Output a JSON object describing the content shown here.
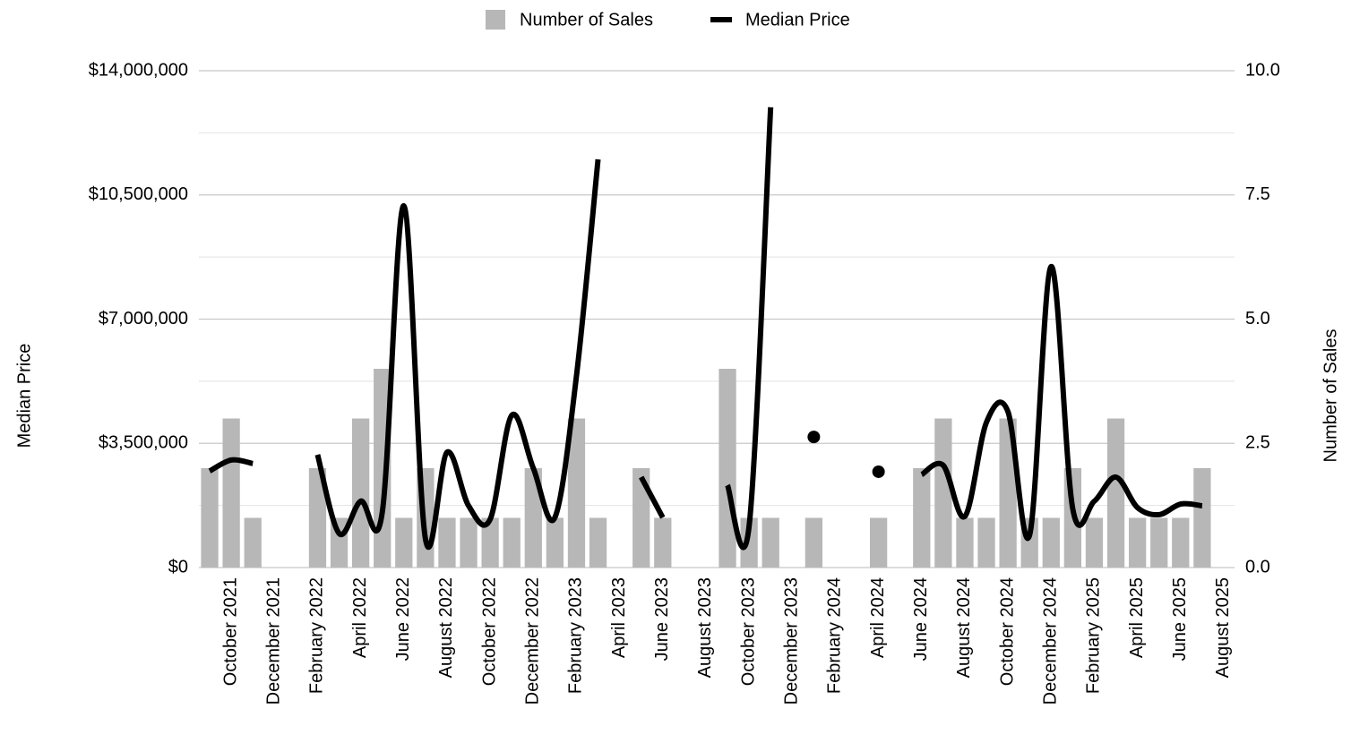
{
  "chart_data": {
    "type": "combo",
    "categories": [
      null,
      "October 2021",
      null,
      "December 2021",
      null,
      "February 2022",
      null,
      "April 2022",
      null,
      "June 2022",
      null,
      "August 2022",
      null,
      "October 2022",
      null,
      "December 2022",
      null,
      "February 2023",
      null,
      "April 2023",
      null,
      "June 2023",
      null,
      "August 2023",
      null,
      "October 2023",
      null,
      "December 2023",
      null,
      "February 2024",
      null,
      "April 2024",
      null,
      "June 2024",
      null,
      "August 2024",
      null,
      "October 2024",
      null,
      "December 2024",
      null,
      "February 2025",
      null,
      "April 2025",
      null,
      "June 2025",
      null,
      "August 2025"
    ],
    "series": [
      {
        "name": "Number of Sales",
        "type": "bar",
        "axis": "y2",
        "color": "#b7b7b7",
        "values": [
          2,
          3,
          1,
          0,
          0,
          2,
          1,
          3,
          4,
          1,
          2,
          1,
          1,
          1,
          1,
          2,
          1,
          3,
          1,
          0,
          2,
          1,
          0,
          0,
          4,
          1,
          1,
          0,
          1,
          0,
          0,
          1,
          0,
          2,
          3,
          1,
          1,
          3,
          1,
          1,
          2,
          1,
          3,
          1,
          1,
          1,
          2,
          0
        ]
      },
      {
        "name": "Median Price",
        "type": "line",
        "axis": "y",
        "color": "#000000",
        "values": [
          2720000,
          3030000,
          2930000,
          null,
          null,
          3180000,
          960000,
          1870000,
          1560000,
          10190000,
          810000,
          3250000,
          1740000,
          1360000,
          4290000,
          2800000,
          1410000,
          5400000,
          11500000,
          null,
          2550000,
          1410000,
          null,
          null,
          2320000,
          1160000,
          12970000,
          null,
          3680000,
          null,
          null,
          2700000,
          null,
          2620000,
          2880000,
          1440000,
          4090000,
          4390000,
          910000,
          8480000,
          1660000,
          1870000,
          2550000,
          1690000,
          1490000,
          1790000,
          1740000,
          null
        ]
      }
    ],
    "y_label": "Median Price",
    "y2_label": "Number of Sales",
    "ylim": [
      0,
      14000000
    ],
    "yticks": [
      {
        "value": 0,
        "label": "$0"
      },
      {
        "value": 3500000,
        "label": "$3,500,000"
      },
      {
        "value": 7000000,
        "label": "$7,000,000"
      },
      {
        "value": 10500000,
        "label": "$10,500,000"
      },
      {
        "value": 14000000,
        "label": "$14,000,000"
      }
    ],
    "y2lim": [
      0,
      10
    ],
    "y2ticks": [
      {
        "value": 0,
        "label": "0.0"
      },
      2.5,
      {
        "value": 5,
        "label": "5.0"
      },
      7.5,
      {
        "value": 10,
        "label": "10.0"
      }
    ],
    "grid": true,
    "minor_grid": true,
    "legend": "top"
  }
}
